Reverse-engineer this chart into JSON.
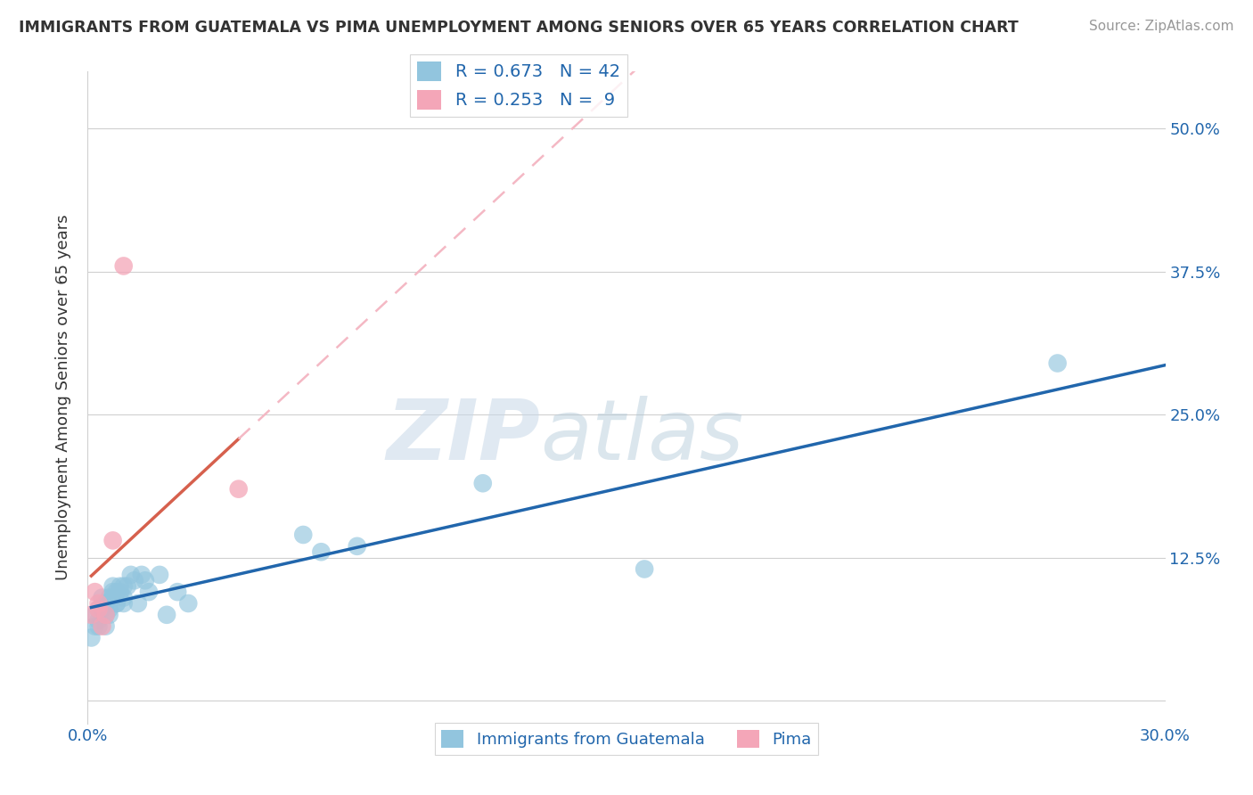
{
  "title": "IMMIGRANTS FROM GUATEMALA VS PIMA UNEMPLOYMENT AMONG SENIORS OVER 65 YEARS CORRELATION CHART",
  "source": "Source: ZipAtlas.com",
  "ylabel": "Unemployment Among Seniors over 65 years",
  "xlim": [
    0.0,
    0.3
  ],
  "ylim": [
    -0.02,
    0.55
  ],
  "yticks": [
    0.0,
    0.125,
    0.25,
    0.375,
    0.5
  ],
  "ytick_labels": [
    "",
    "12.5%",
    "25.0%",
    "37.5%",
    "50.0%"
  ],
  "grid_color": "#d0d0d0",
  "background_color": "#ffffff",
  "blue_scatter_x": [
    0.001,
    0.002,
    0.002,
    0.003,
    0.003,
    0.003,
    0.004,
    0.004,
    0.005,
    0.005,
    0.005,
    0.006,
    0.006,
    0.006,
    0.007,
    0.007,
    0.007,
    0.008,
    0.008,
    0.008,
    0.009,
    0.009,
    0.01,
    0.01,
    0.01,
    0.011,
    0.012,
    0.013,
    0.014,
    0.015,
    0.016,
    0.017,
    0.02,
    0.022,
    0.025,
    0.028,
    0.06,
    0.065,
    0.075,
    0.11,
    0.155,
    0.27
  ],
  "blue_scatter_y": [
    0.055,
    0.065,
    0.075,
    0.07,
    0.08,
    0.065,
    0.08,
    0.09,
    0.075,
    0.085,
    0.065,
    0.09,
    0.08,
    0.075,
    0.09,
    0.095,
    0.1,
    0.085,
    0.095,
    0.085,
    0.1,
    0.095,
    0.09,
    0.1,
    0.085,
    0.1,
    0.11,
    0.105,
    0.085,
    0.11,
    0.105,
    0.095,
    0.11,
    0.075,
    0.095,
    0.085,
    0.145,
    0.13,
    0.135,
    0.19,
    0.115,
    0.295
  ],
  "pink_scatter_x": [
    0.001,
    0.002,
    0.003,
    0.003,
    0.004,
    0.005,
    0.007,
    0.01,
    0.042
  ],
  "pink_scatter_y": [
    0.075,
    0.095,
    0.085,
    0.08,
    0.065,
    0.075,
    0.14,
    0.38,
    0.185
  ],
  "blue_R": 0.673,
  "blue_N": 42,
  "pink_R": 0.253,
  "pink_N": 9,
  "blue_color": "#92c5de",
  "blue_line_color": "#2166ac",
  "pink_color": "#f4a6b8",
  "pink_line_color": "#d6604d",
  "pink_dash_color": "#f4b8c4",
  "legend_text_color": "#2166ac",
  "right_axis_color": "#2166ac",
  "title_color": "#333333",
  "source_color": "#999999"
}
